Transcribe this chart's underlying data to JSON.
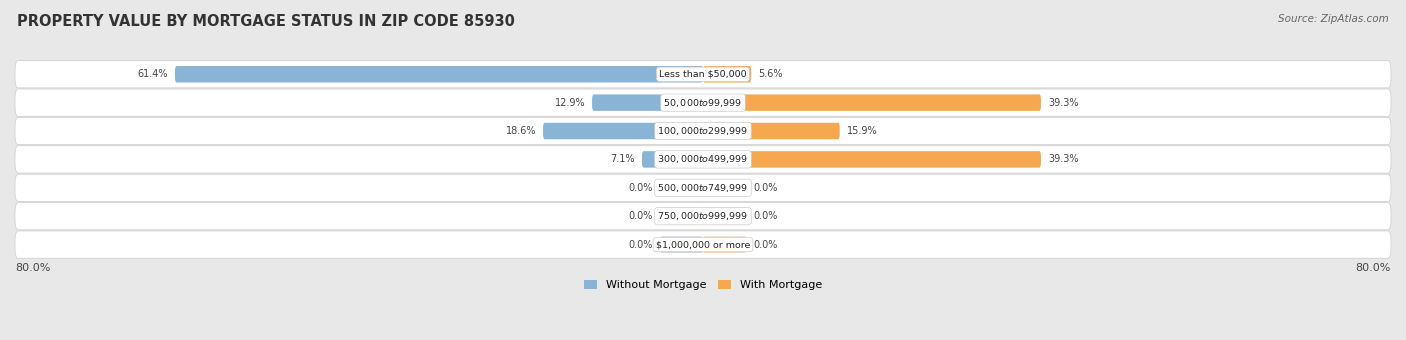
{
  "title": "PROPERTY VALUE BY MORTGAGE STATUS IN ZIP CODE 85930",
  "source": "Source: ZipAtlas.com",
  "categories": [
    "Less than $50,000",
    "$50,000 to $99,999",
    "$100,000 to $299,999",
    "$300,000 to $499,999",
    "$500,000 to $749,999",
    "$750,000 to $999,999",
    "$1,000,000 or more"
  ],
  "without_mortgage": [
    61.4,
    12.9,
    18.6,
    7.1,
    0.0,
    0.0,
    0.0
  ],
  "with_mortgage": [
    5.6,
    39.3,
    15.9,
    39.3,
    0.0,
    0.0,
    0.0
  ],
  "without_color": "#8AB4D6",
  "with_color": "#F5A84E",
  "with_color_light": "#F8CCAA",
  "without_color_light": "#BBCFE8",
  "axis_label_left": "80.0%",
  "axis_label_right": "80.0%",
  "max_val": 80.0,
  "bg_color": "#E8E8E8",
  "row_bg_color": "#FFFFFF",
  "title_fontsize": 10.5,
  "source_fontsize": 7.5,
  "bar_height": 0.58,
  "stub_size": 5.0,
  "figsize": [
    14.06,
    3.4
  ],
  "dpi": 100
}
